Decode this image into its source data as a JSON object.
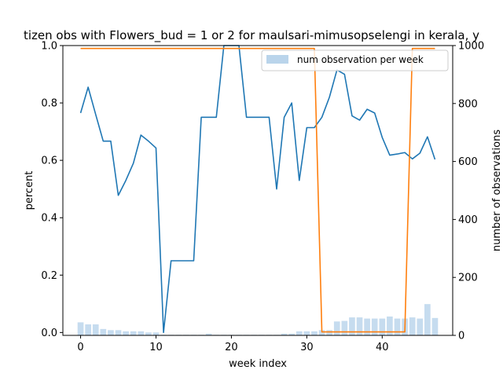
{
  "chart_data": {
    "type": "line",
    "title": "tizen obs with Flowers_bud = 1 or 2 for maulsari-mimusopselengi in kerala, y",
    "xlabel": "week index",
    "ylabel": "percent",
    "y2label": "number of observations",
    "xlim": [
      -2.35,
      49.35
    ],
    "ylim": [
      -0.01,
      1.0
    ],
    "y2lim": [
      0,
      1000
    ],
    "xticks": [
      0,
      10,
      20,
      30,
      40
    ],
    "yticks": [
      0.0,
      0.2,
      0.4,
      0.6,
      0.8,
      1.0
    ],
    "y2ticks": [
      0,
      200,
      400,
      600,
      800,
      1000
    ],
    "x": [
      0,
      1,
      2,
      3,
      4,
      5,
      6,
      7,
      8,
      9,
      10,
      11,
      12,
      13,
      14,
      15,
      16,
      17,
      18,
      19,
      20,
      21,
      22,
      23,
      24,
      25,
      26,
      27,
      28,
      29,
      30,
      31,
      32,
      33,
      34,
      35,
      36,
      37,
      38,
      39,
      40,
      41,
      42,
      43,
      44,
      45,
      46,
      47
    ],
    "series": [
      {
        "color": "#1f77b4",
        "axis": "left",
        "kind": "line",
        "values": [
          0.765,
          0.855,
          0.76,
          0.667,
          0.667,
          0.478,
          0.53,
          0.59,
          0.688,
          0.667,
          0.643,
          0.0,
          0.25,
          0.25,
          0.25,
          0.25,
          0.75,
          0.75,
          0.75,
          1.0,
          1.0,
          1.0,
          0.75,
          0.75,
          0.75,
          0.75,
          0.5,
          0.75,
          0.8,
          0.53,
          0.714,
          0.714,
          0.75,
          0.82,
          0.915,
          0.9,
          0.755,
          0.74,
          0.778,
          0.765,
          0.68,
          0.618,
          0.622,
          0.627,
          0.605,
          0.625,
          0.682,
          0.603
        ]
      },
      {
        "color": "#ff7f0e",
        "axis": "right",
        "kind": "line",
        "values": [
          990,
          990,
          990,
          990,
          990,
          990,
          990,
          990,
          990,
          990,
          990,
          990,
          990,
          990,
          990,
          990,
          990,
          990,
          990,
          990,
          990,
          990,
          990,
          990,
          990,
          990,
          990,
          990,
          990,
          990,
          990,
          990,
          12,
          12,
          12,
          12,
          12,
          12,
          12,
          12,
          12,
          12,
          12,
          12,
          990,
          990,
          990,
          990
        ]
      },
      {
        "name": "num observation per week",
        "color": "#aecde8",
        "axis": "right",
        "kind": "bar",
        "values": [
          45,
          38,
          38,
          22,
          18,
          18,
          14,
          14,
          14,
          10,
          10,
          2,
          2,
          2,
          2,
          2,
          2,
          6,
          2,
          2,
          2,
          2,
          2,
          2,
          2,
          2,
          2,
          6,
          6,
          14,
          14,
          14,
          18,
          18,
          48,
          50,
          62,
          62,
          58,
          58,
          58,
          65,
          58,
          58,
          62,
          58,
          108,
          60
        ]
      }
    ],
    "legend": {
      "placement": "upper right"
    },
    "grid": false
  }
}
